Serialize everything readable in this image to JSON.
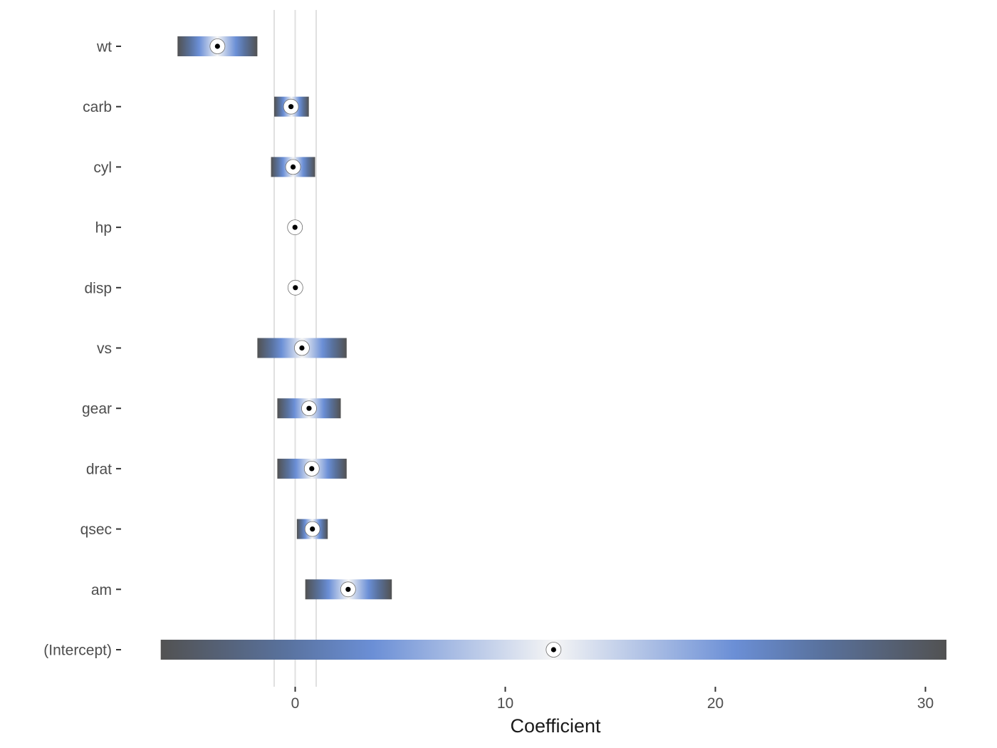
{
  "chart_data": {
    "type": "coefficient-plot",
    "title": "",
    "xlabel": "Coefficient",
    "ylabel": "",
    "xlim": [
      -6.4,
      31.4
    ],
    "xticks": [
      0,
      10,
      20,
      30
    ],
    "reference_lines": [
      -1,
      0,
      1
    ],
    "grid": false,
    "legend": "none",
    "coefficients": [
      {
        "term": "wt",
        "estimate": -3.7,
        "low": -5.6,
        "high": -1.8
      },
      {
        "term": "carb",
        "estimate": -0.2,
        "low": -1.0,
        "high": 0.65
      },
      {
        "term": "cyl",
        "estimate": -0.1,
        "low": -1.15,
        "high": 0.95
      },
      {
        "term": "hp",
        "estimate": -0.01,
        "low": -0.05,
        "high": 0.03
      },
      {
        "term": "disp",
        "estimate": 0.01,
        "low": -0.02,
        "high": 0.04
      },
      {
        "term": "vs",
        "estimate": 0.32,
        "low": -1.8,
        "high": 2.45
      },
      {
        "term": "gear",
        "estimate": 0.66,
        "low": -0.85,
        "high": 2.17
      },
      {
        "term": "drat",
        "estimate": 0.79,
        "low": -0.85,
        "high": 2.45
      },
      {
        "term": "qsec",
        "estimate": 0.82,
        "low": 0.08,
        "high": 1.55
      },
      {
        "term": "am",
        "estimate": 2.52,
        "low": 0.48,
        "high": 4.6
      },
      {
        "term": "(Intercept)",
        "estimate": 12.3,
        "low": -6.4,
        "high": 31.0
      }
    ],
    "colors": {
      "band_outer": "#525252",
      "band_mid": "#6b8fd6",
      "band_center": "#f5f5f5",
      "reference_line": "#e0e0e0",
      "axis_text": "#4d4d4d",
      "point_fill": "#ffffff",
      "point_center": "#000000"
    }
  }
}
